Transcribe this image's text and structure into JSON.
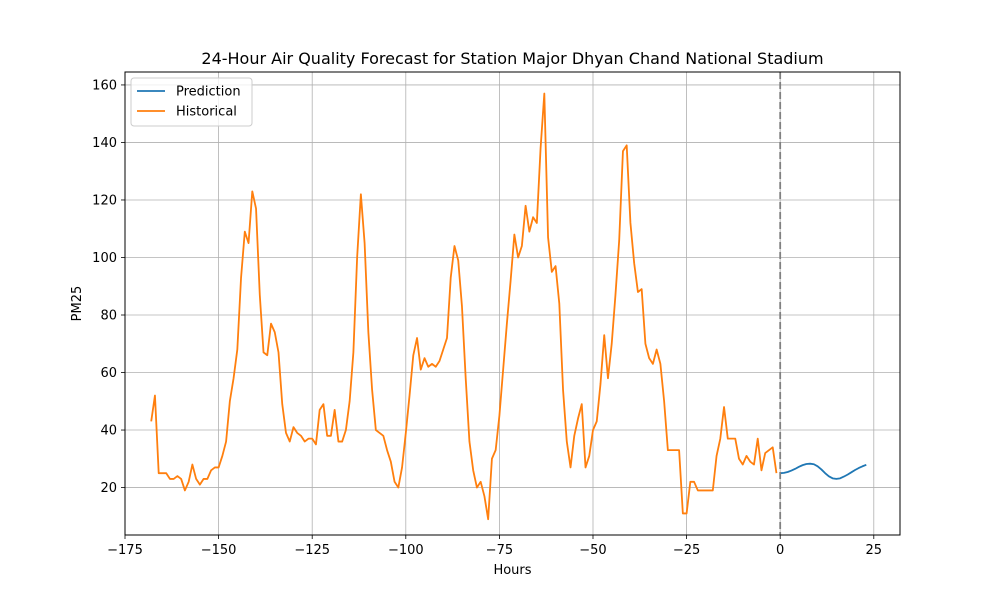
{
  "chart_data": {
    "type": "line",
    "title": "24-Hour Air Quality Forecast for Station Major Dhyan Chand National Stadium",
    "xlabel": "Hours",
    "ylabel": "PM25",
    "xlim": [
      -175,
      32
    ],
    "ylim": [
      3.5,
      164.5
    ],
    "xticks": [
      -175,
      -150,
      -125,
      -100,
      -75,
      -50,
      -25,
      0,
      25
    ],
    "yticks": [
      20,
      40,
      60,
      80,
      100,
      120,
      140,
      160
    ],
    "grid": true,
    "legend_position": "top-left",
    "vline": {
      "x": 0,
      "style": "dashed",
      "color": "#808080"
    },
    "series": [
      {
        "name": "Prediction",
        "color": "#1f77b4",
        "x": [
          0,
          1,
          2,
          3,
          4,
          5,
          6,
          7,
          8,
          9,
          10,
          11,
          12,
          13,
          14,
          15,
          16,
          17,
          18,
          19,
          20,
          21,
          22,
          23
        ],
        "y": [
          25.0,
          25.1,
          25.4,
          25.9,
          26.5,
          27.2,
          27.8,
          28.2,
          28.3,
          28.1,
          27.4,
          26.3,
          25.0,
          23.9,
          23.2,
          23.0,
          23.2,
          23.8,
          24.5,
          25.3,
          26.1,
          26.8,
          27.4,
          27.9
        ]
      },
      {
        "name": "Historical",
        "color": "#ff7f0e",
        "x": [
          -168,
          -167,
          -166,
          -165,
          -164,
          -163,
          -162,
          -161,
          -160,
          -159,
          -158,
          -157,
          -156,
          -155,
          -154,
          -153,
          -152,
          -151,
          -150,
          -149,
          -148,
          -147,
          -146,
          -145,
          -144,
          -143,
          -142,
          -141,
          -140,
          -139,
          -138,
          -137,
          -136,
          -135,
          -134,
          -133,
          -132,
          -131,
          -130,
          -129,
          -128,
          -127,
          -126,
          -125,
          -124,
          -123,
          -122,
          -121,
          -120,
          -119,
          -118,
          -117,
          -116,
          -115,
          -114,
          -113,
          -112,
          -111,
          -110,
          -109,
          -108,
          -107,
          -106,
          -105,
          -104,
          -103,
          -102,
          -101,
          -100,
          -99,
          -98,
          -97,
          -96,
          -95,
          -94,
          -93,
          -92,
          -91,
          -90,
          -89,
          -88,
          -87,
          -86,
          -85,
          -84,
          -83,
          -82,
          -81,
          -80,
          -79,
          -78,
          -77,
          -76,
          -75,
          -74,
          -73,
          -72,
          -71,
          -70,
          -69,
          -68,
          -67,
          -66,
          -65,
          -64,
          -63,
          -62,
          -61,
          -60,
          -59,
          -58,
          -57,
          -56,
          -55,
          -54,
          -53,
          -52,
          -51,
          -50,
          -49,
          -48,
          -47,
          -46,
          -45,
          -44,
          -43,
          -42,
          -41,
          -40,
          -39,
          -38,
          -37,
          -36,
          -35,
          -34,
          -33,
          -32,
          -31,
          -30,
          -29,
          -28,
          -27,
          -26,
          -25,
          -24,
          -23,
          -22,
          -21,
          -20,
          -19,
          -18,
          -17,
          -16,
          -15,
          -14,
          -13,
          -12,
          -11,
          -10,
          -9,
          -8,
          -7,
          -6,
          -5,
          -4,
          -3,
          -2,
          -1
        ],
        "y": [
          43,
          52,
          25,
          25,
          25,
          23,
          23,
          24,
          23,
          19,
          22,
          28,
          23,
          21,
          23,
          23,
          26,
          27,
          27,
          31,
          36,
          50,
          58,
          68,
          93,
          109,
          105,
          123,
          117,
          87,
          67,
          66,
          77,
          74,
          67,
          49,
          39,
          36,
          41,
          39,
          38,
          36,
          37,
          37,
          35,
          47,
          49,
          38,
          38,
          47,
          36,
          36,
          40,
          50,
          67,
          100,
          122,
          105,
          74,
          54,
          40,
          39,
          38,
          33,
          29,
          22,
          20,
          27,
          39,
          52,
          66,
          72,
          61,
          65,
          62,
          63,
          62,
          64,
          68,
          72,
          93,
          104,
          99,
          83,
          58,
          36,
          26,
          20,
          22,
          17,
          9,
          30,
          33,
          45,
          61,
          77,
          92,
          108,
          100,
          104,
          118,
          109,
          114,
          112,
          138,
          157,
          107,
          95,
          97,
          84,
          54,
          36,
          27,
          38,
          44,
          49,
          27,
          31,
          40,
          43,
          56,
          73,
          58,
          70,
          87,
          106,
          137,
          139,
          112,
          98,
          88,
          89,
          70,
          65,
          63,
          68,
          63,
          50,
          33,
          33,
          33,
          33,
          11,
          11,
          22,
          22,
          19,
          19,
          19,
          19,
          19,
          31,
          37,
          48,
          37,
          37,
          37,
          30,
          28,
          31,
          29,
          28,
          37,
          26,
          32,
          33,
          34,
          25
        ]
      }
    ]
  }
}
